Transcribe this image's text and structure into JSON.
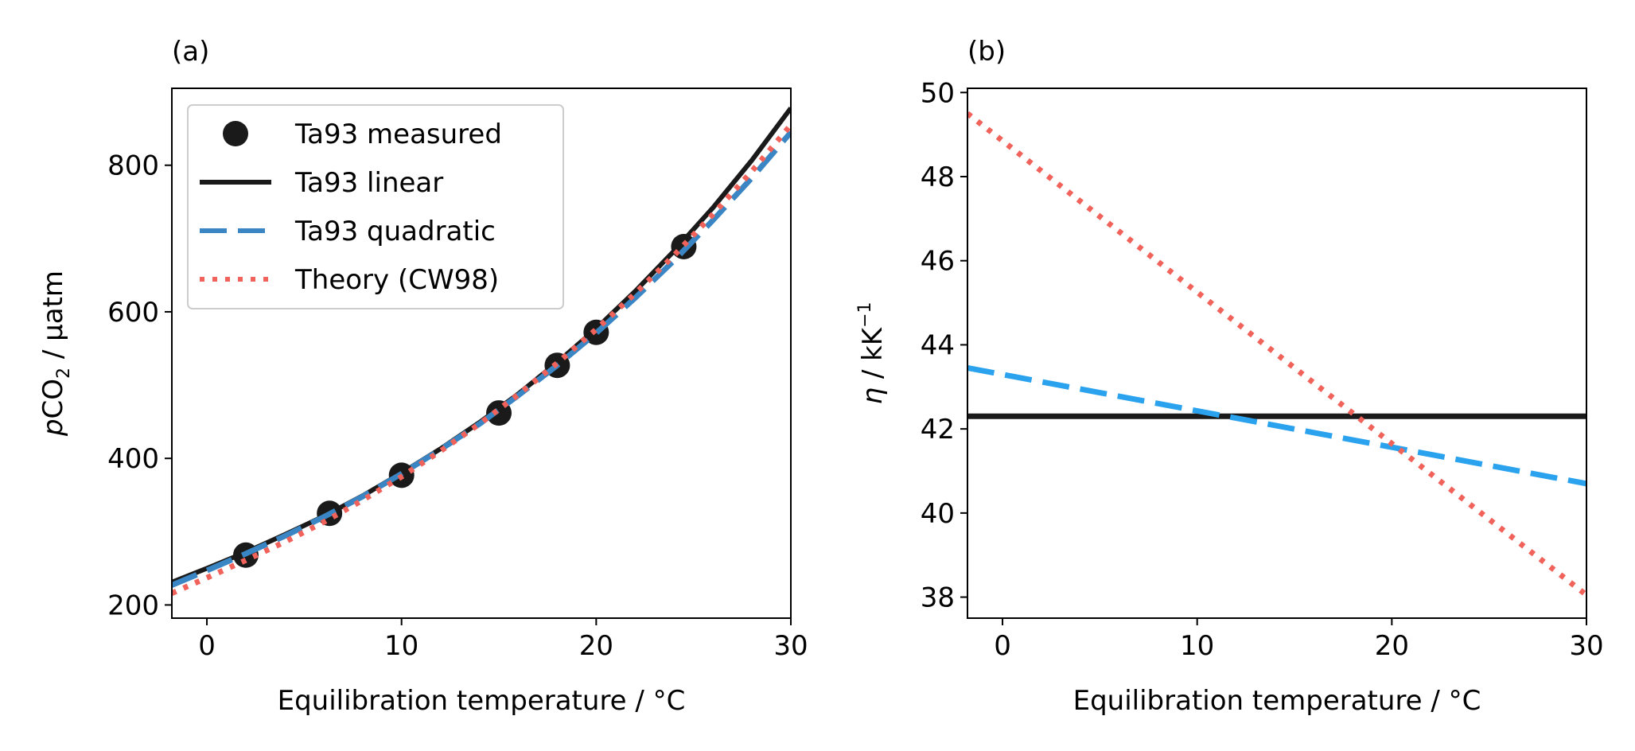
{
  "chart_data": [
    {
      "type": "line",
      "panel_label": "(a)",
      "xlabel": "Equilibration temperature / °C",
      "ylabel_parts": [
        "p",
        "CO",
        "2",
        " / µatm"
      ],
      "xlim": [
        -1.8,
        30
      ],
      "ylim": [
        182,
        905
      ],
      "xticks": [
        0,
        10,
        20,
        30
      ],
      "yticks": [
        200,
        400,
        600,
        800
      ],
      "legend_position": "upper-left",
      "grid": false,
      "series": [
        {
          "name": "Ta93 measured",
          "style": "markers",
          "color": "#1a1a1a",
          "x": [
            2.0,
            6.3,
            10.0,
            15.0,
            18.0,
            20.0,
            24.5
          ],
          "y": [
            268,
            325,
            377,
            462,
            527,
            572,
            689
          ]
        },
        {
          "name": "Ta93 linear",
          "style": "solid",
          "color": "#1a1a1a",
          "x": [
            -1.8,
            0,
            2,
            4,
            6,
            8,
            10,
            12,
            14,
            16,
            18,
            20,
            22,
            24,
            26,
            28,
            30
          ],
          "y": [
            231,
            250,
            272,
            296,
            321,
            349,
            380,
            413,
            449,
            488,
            531,
            577,
            628,
            683,
            742,
            807,
            878
          ]
        },
        {
          "name": "Ta93 quadratic",
          "style": "dashed",
          "color": "#3a86c4",
          "x": [
            -1.8,
            0,
            2,
            4,
            6,
            8,
            10,
            12,
            14,
            16,
            18,
            20,
            22,
            24,
            26,
            28,
            30
          ],
          "y": [
            227,
            247,
            270,
            294,
            320,
            348,
            379,
            412,
            447,
            486,
            527,
            571,
            619,
            670,
            725,
            783,
            845
          ]
        },
        {
          "name": "Theory (CW98)",
          "style": "dotted",
          "color": "#f0625a",
          "x": [
            -1.8,
            0,
            2,
            4,
            6,
            8,
            10,
            12,
            14,
            16,
            18,
            20,
            22,
            24,
            26,
            28,
            30
          ],
          "y": [
            216,
            237,
            261,
            286,
            313,
            343,
            375,
            410,
            447,
            487,
            530,
            576,
            625,
            677,
            733,
            792,
            855
          ]
        }
      ]
    },
    {
      "type": "line",
      "panel_label": "(b)",
      "xlabel": "Equilibration temperature / °C",
      "ylabel_parts": [
        "η",
        " / kK",
        "−1"
      ],
      "xlim": [
        -1.8,
        30
      ],
      "ylim": [
        37.5,
        50.1
      ],
      "xticks": [
        0,
        10,
        20,
        30
      ],
      "yticks": [
        38,
        40,
        42,
        44,
        46,
        48,
        50
      ],
      "grid": false,
      "series": [
        {
          "style": "solid",
          "color": "#1a1a1a",
          "x": [
            -1.8,
            30
          ],
          "y": [
            42.3,
            42.3
          ]
        },
        {
          "style": "dashed",
          "color": "#2aa2ee",
          "x": [
            -1.8,
            30
          ],
          "y": [
            43.45,
            40.7
          ]
        },
        {
          "style": "dotted",
          "color": "#f0625a",
          "x": [
            -1.8,
            30
          ],
          "y": [
            49.5,
            38.05
          ]
        }
      ]
    }
  ]
}
